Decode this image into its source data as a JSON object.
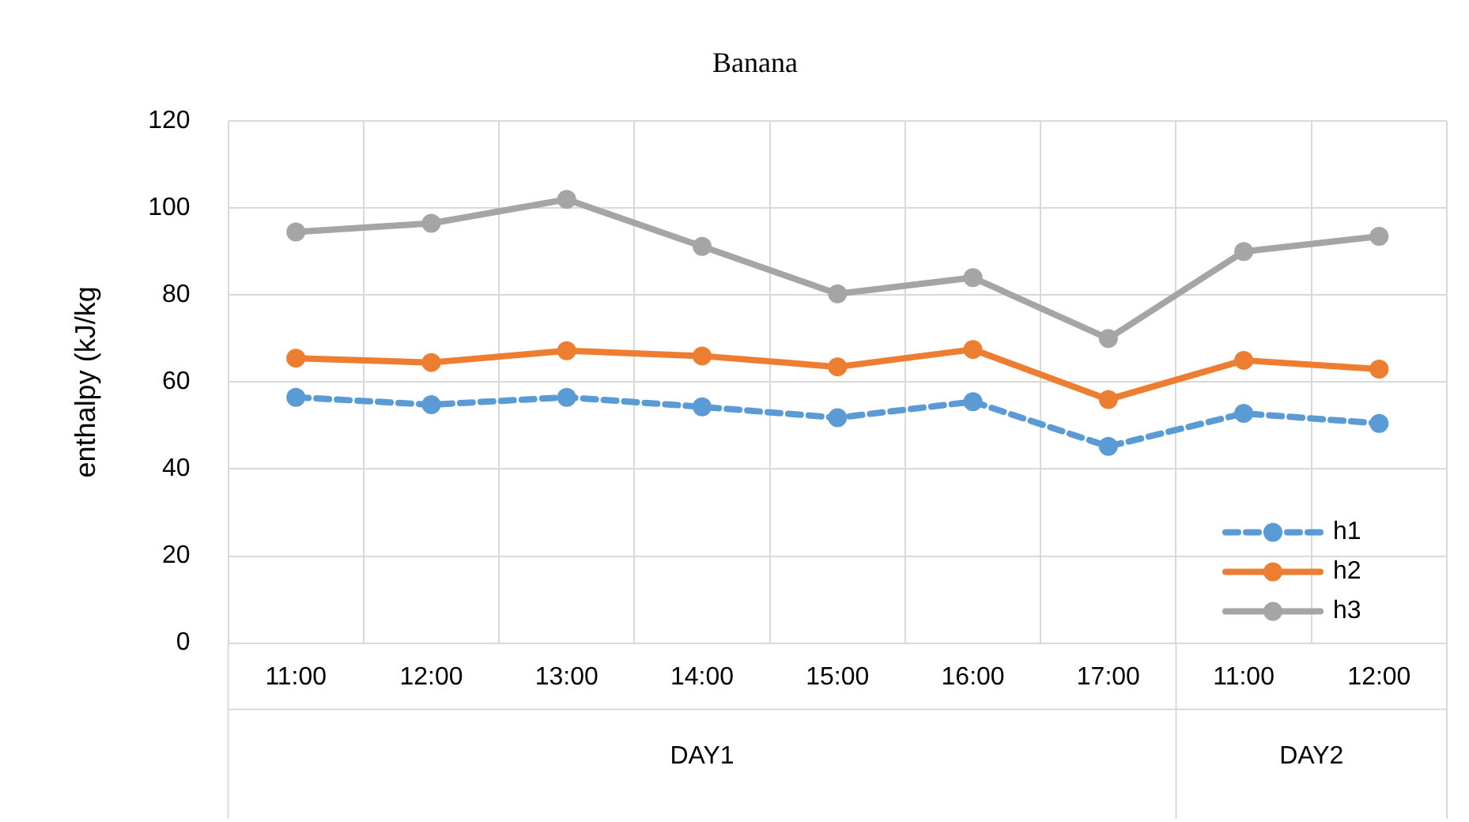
{
  "chart_data": {
    "type": "line",
    "title": "Banana",
    "ylabel": "enthalpy (kJ/kg",
    "categories": [
      "11:00",
      "12:00",
      "13:00",
      "14:00",
      "15:00",
      "16:00",
      "17:00",
      "11:00",
      "12:00"
    ],
    "annotations": [
      "DAY1",
      "DAY2"
    ],
    "ylim": [
      0,
      120
    ],
    "yticks": [
      0,
      20,
      40,
      60,
      80,
      100,
      120
    ],
    "grid": true,
    "legend": "bottom right",
    "marker": "circle",
    "series": [
      {
        "name": "h1",
        "color": "#5b9bd5",
        "line_style": "dashed",
        "values": [
          56.5,
          54.8,
          56.5,
          54.3,
          51.8,
          55.5,
          45.2,
          52.8,
          50.5
        ]
      },
      {
        "name": "h2",
        "color": "#ed7d31",
        "line_style": "solid",
        "values": [
          65.5,
          64.5,
          67.2,
          66,
          63.5,
          67.5,
          56,
          65,
          63
        ]
      },
      {
        "name": "h3",
        "color": "#a5a5a5",
        "line_style": "solid",
        "values": [
          94.5,
          96.5,
          102,
          91.2,
          80.3,
          84,
          70,
          90,
          93.5
        ]
      }
    ]
  }
}
